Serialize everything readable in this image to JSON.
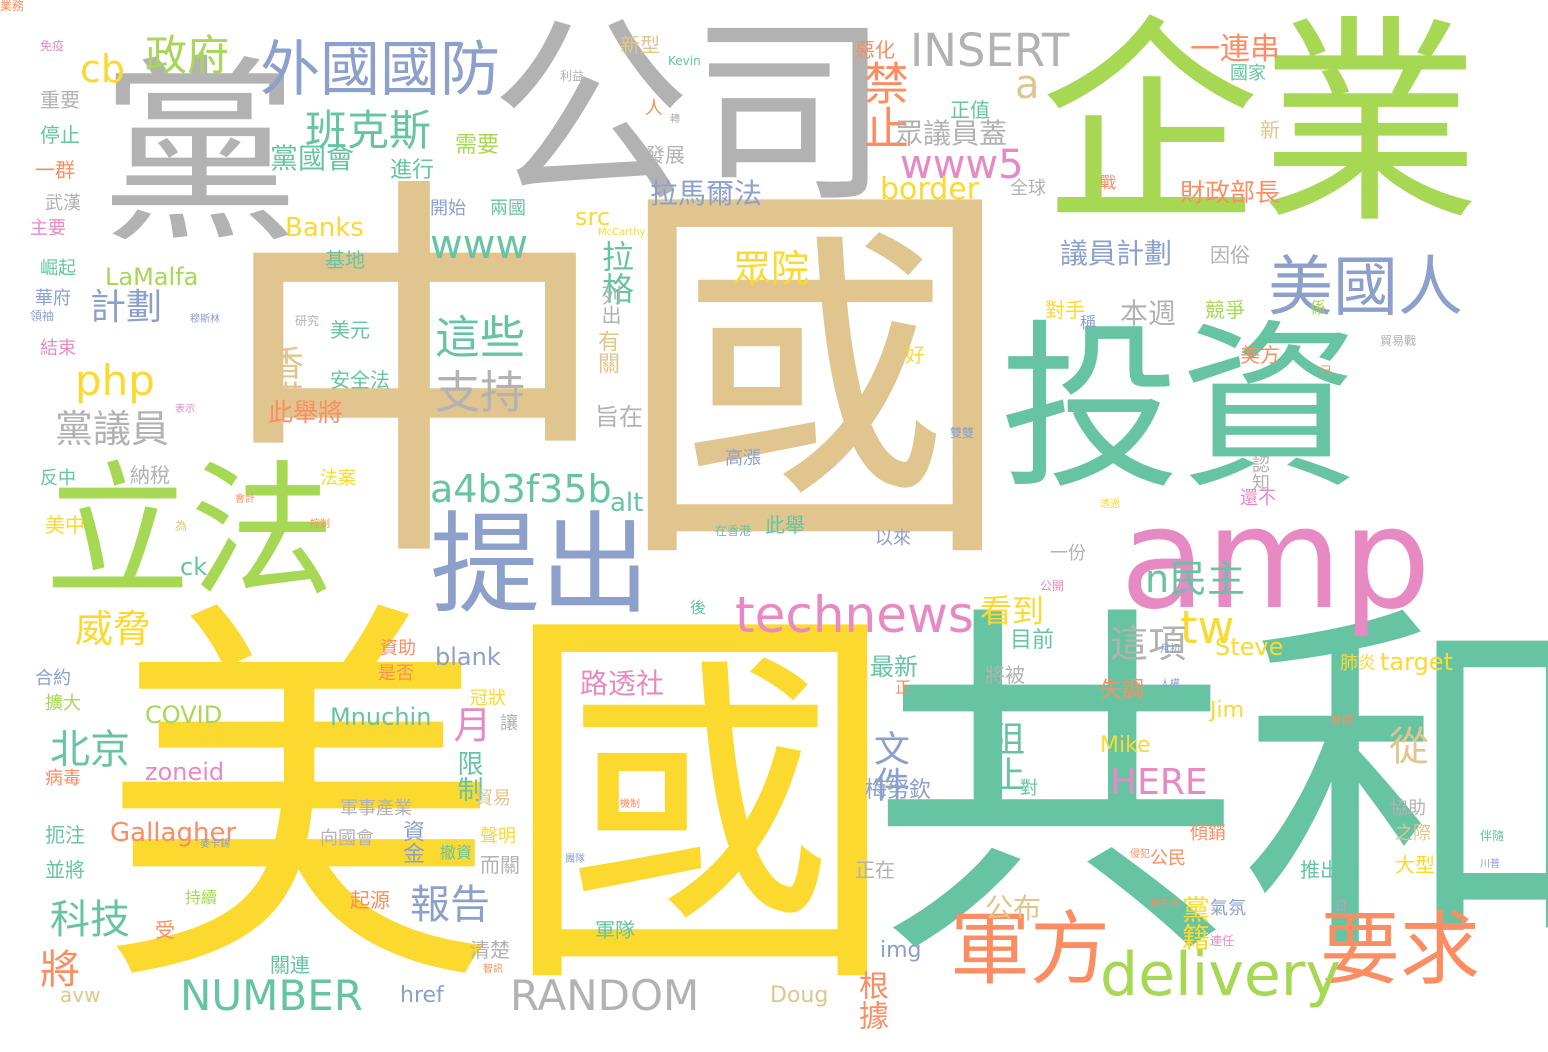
{
  "cloud": {
    "palette": {
      "tan": "#e1c58e",
      "yellow": "#fcd92f",
      "teal": "#66c4a3",
      "green": "#a6d854",
      "gray": "#b2b2b2",
      "blue": "#8da0cb",
      "pink": "#e78ac3",
      "orange": "#fc8d62"
    },
    "words": [
      {
        "t": "中國",
        "c": "tan"
      },
      {
        "t": "美國",
        "c": "yellow"
      },
      {
        "t": "共和",
        "c": "teal"
      },
      {
        "t": "企業",
        "c": "green"
      },
      {
        "t": "公司",
        "c": "gray"
      },
      {
        "t": "黨",
        "c": "gray"
      },
      {
        "t": "投資",
        "c": "teal"
      },
      {
        "t": "立法",
        "c": "green"
      },
      {
        "t": "amp",
        "c": "pink"
      },
      {
        "t": "提出",
        "c": "blue"
      },
      {
        "t": "軍方",
        "c": "orange"
      },
      {
        "t": "要求",
        "c": "orange"
      },
      {
        "t": "technews",
        "c": "pink"
      },
      {
        "t": "delivery",
        "c": "green"
      },
      {
        "t": "美國人",
        "c": "blue"
      },
      {
        "t": "外國國防",
        "c": "blue"
      },
      {
        "t": "INSERT",
        "c": "gray"
      },
      {
        "t": "www5",
        "c": "pink"
      },
      {
        "t": "www",
        "c": "teal"
      },
      {
        "t": "a4b3f35b",
        "c": "teal"
      },
      {
        "t": "NUMBER",
        "c": "teal"
      },
      {
        "t": "RANDOM",
        "c": "gray"
      },
      {
        "t": "php",
        "c": "yellow"
      },
      {
        "t": "班克斯",
        "c": "teal"
      },
      {
        "t": "政府",
        "c": "green"
      },
      {
        "t": "cb",
        "c": "yellow"
      },
      {
        "t": "禁止",
        "c": "orange"
      },
      {
        "t": "a",
        "c": "tan"
      },
      {
        "t": "香港",
        "c": "tan"
      },
      {
        "t": "此舉將",
        "c": "orange"
      },
      {
        "t": "這些",
        "c": "teal"
      },
      {
        "t": "支持",
        "c": "gray"
      },
      {
        "t": "眾院",
        "c": "yellow"
      },
      {
        "t": "拉格",
        "c": "teal"
      },
      {
        "t": "計劃",
        "c": "blue"
      },
      {
        "t": "黨議員",
        "c": "gray"
      },
      {
        "t": "威脅",
        "c": "yellow"
      },
      {
        "t": "北京",
        "c": "teal"
      },
      {
        "t": "科技",
        "c": "teal"
      },
      {
        "t": "將",
        "c": "orange"
      },
      {
        "t": "報告",
        "c": "blue"
      },
      {
        "t": "月",
        "c": "pink"
      },
      {
        "t": "tw",
        "c": "yellow"
      },
      {
        "t": "n民主",
        "c": "teal"
      },
      {
        "t": "這項",
        "c": "gray"
      },
      {
        "t": "看到",
        "c": "yellow"
      },
      {
        "t": "從",
        "c": "tan"
      },
      {
        "t": "HERE",
        "c": "pink"
      },
      {
        "t": "阻止",
        "c": "teal"
      },
      {
        "t": "文件",
        "c": "blue"
      },
      {
        "t": "路透社",
        "c": "pink"
      },
      {
        "t": "黨籍",
        "c": "yellow"
      },
      {
        "t": "公布",
        "c": "tan"
      },
      {
        "t": "根據",
        "c": "orange"
      },
      {
        "t": "黨國會",
        "c": "teal"
      },
      {
        "t": "border",
        "c": "yellow"
      },
      {
        "t": "拉馬爾法",
        "c": "blue"
      },
      {
        "t": "議員計劃",
        "c": "blue"
      },
      {
        "t": "眾議員蓋",
        "c": "gray"
      },
      {
        "t": "一連串",
        "c": "orange"
      },
      {
        "t": "財政部長",
        "c": "orange"
      },
      {
        "t": "本週",
        "c": "gray"
      },
      {
        "t": "Banks",
        "c": "yellow"
      },
      {
        "t": "LaMalfa",
        "c": "green"
      },
      {
        "t": "src",
        "c": "yellow"
      },
      {
        "t": "Gallagher",
        "c": "orange"
      },
      {
        "t": "zoneid",
        "c": "pink"
      },
      {
        "t": "COVID",
        "c": "green"
      },
      {
        "t": "Mnuchin",
        "c": "teal"
      },
      {
        "t": "blank",
        "c": "blue"
      },
      {
        "t": "Steve",
        "c": "yellow"
      },
      {
        "t": "target",
        "c": "yellow"
      },
      {
        "t": "Mike",
        "c": "yellow"
      },
      {
        "t": "Jim",
        "c": "yellow"
      },
      {
        "t": "href",
        "c": "blue"
      },
      {
        "t": "img",
        "c": "blue"
      },
      {
        "t": "Doug",
        "c": "tan"
      },
      {
        "t": "avw",
        "c": "tan"
      },
      {
        "t": "ck",
        "c": "teal"
      },
      {
        "t": "alt",
        "c": "teal"
      },
      {
        "t": "限制",
        "c": "teal"
      },
      {
        "t": "資金",
        "c": "blue"
      },
      {
        "t": "有關",
        "c": "tan"
      },
      {
        "t": "旨在",
        "c": "gray"
      },
      {
        "t": "列出",
        "c": "gray"
      },
      {
        "t": "最新",
        "c": "teal"
      },
      {
        "t": "梅努欽",
        "c": "blue"
      },
      {
        "t": "目前",
        "c": "teal"
      },
      {
        "t": "失調",
        "c": "orange"
      },
      {
        "t": "將被",
        "c": "gray"
      },
      {
        "t": "進行",
        "c": "teal"
      },
      {
        "t": "需要",
        "c": "green"
      },
      {
        "t": "開始",
        "c": "blue"
      },
      {
        "t": "兩國",
        "c": "teal"
      },
      {
        "t": "基地",
        "c": "teal"
      },
      {
        "t": "發展",
        "c": "gray"
      },
      {
        "t": "全球",
        "c": "gray"
      },
      {
        "t": "因俗",
        "c": "gray"
      },
      {
        "t": "競爭",
        "c": "green"
      },
      {
        "t": "對手",
        "c": "yellow"
      },
      {
        "t": "美方",
        "c": "orange"
      },
      {
        "t": "認知",
        "c": "gray"
      },
      {
        "t": "還不",
        "c": "pink"
      },
      {
        "t": "好",
        "c": "yellow"
      },
      {
        "t": "以來",
        "c": "blue"
      },
      {
        "t": "高漲",
        "c": "blue"
      },
      {
        "t": "此舉",
        "c": "teal"
      },
      {
        "t": "一份",
        "c": "gray"
      },
      {
        "t": "美元",
        "c": "teal"
      },
      {
        "t": "安全法",
        "c": "teal"
      },
      {
        "t": "法案",
        "c": "yellow"
      },
      {
        "t": "納稅",
        "c": "gray"
      },
      {
        "t": "反中",
        "c": "teal"
      },
      {
        "t": "美中",
        "c": "yellow"
      },
      {
        "t": "結束",
        "c": "pink"
      },
      {
        "t": "華府",
        "c": "blue"
      },
      {
        "t": "崛起",
        "c": "teal"
      },
      {
        "t": "主要",
        "c": "pink"
      },
      {
        "t": "武漢",
        "c": "gray"
      },
      {
        "t": "一群",
        "c": "orange"
      },
      {
        "t": "停止",
        "c": "teal"
      },
      {
        "t": "重要",
        "c": "gray"
      },
      {
        "t": "新型",
        "c": "tan"
      },
      {
        "t": "人",
        "c": "orange"
      },
      {
        "t": "惡化",
        "c": "orange"
      },
      {
        "t": "正值",
        "c": "teal"
      },
      {
        "t": "國家",
        "c": "teal"
      },
      {
        "t": "新",
        "c": "tan"
      },
      {
        "t": "係",
        "c": "green"
      },
      {
        "t": "稱",
        "c": "blue"
      },
      {
        "t": "軍事產業",
        "c": "gray"
      },
      {
        "t": "向國會",
        "c": "gray"
      },
      {
        "t": "而關",
        "c": "gray"
      },
      {
        "t": "聲明",
        "c": "yellow"
      },
      {
        "t": "貿易",
        "c": "tan"
      },
      {
        "t": "冠狀",
        "c": "yellow"
      },
      {
        "t": "讓",
        "c": "gray"
      },
      {
        "t": "撤資",
        "c": "teal"
      },
      {
        "t": "資助",
        "c": "orange"
      },
      {
        "t": "是否",
        "c": "orange"
      },
      {
        "t": "合約",
        "c": "blue"
      },
      {
        "t": "擴大",
        "c": "green"
      },
      {
        "t": "病毒",
        "c": "orange"
      },
      {
        "t": "扼注",
        "c": "teal"
      },
      {
        "t": "並將",
        "c": "teal"
      },
      {
        "t": "受",
        "c": "orange"
      },
      {
        "t": "持續",
        "c": "green"
      },
      {
        "t": "起源",
        "c": "orange"
      },
      {
        "t": "關連",
        "c": "teal"
      },
      {
        "t": "清楚",
        "c": "gray"
      },
      {
        "t": "軍隊",
        "c": "teal"
      },
      {
        "t": "正在",
        "c": "gray"
      },
      {
        "t": "公民",
        "c": "orange"
      },
      {
        "t": "傾銷",
        "c": "orange"
      },
      {
        "t": "國會",
        "c": "teal"
      },
      {
        "t": "推出",
        "c": "teal"
      },
      {
        "t": "氣氛",
        "c": "blue"
      },
      {
        "t": "協助",
        "c": "gray"
      },
      {
        "t": "之際",
        "c": "tan"
      },
      {
        "t": "大型",
        "c": "yellow"
      },
      {
        "t": "肺炎",
        "c": "yellow"
      },
      {
        "t": "對",
        "c": "teal"
      },
      {
        "t": "後",
        "c": "teal"
      },
      {
        "t": "正",
        "c": "orange"
      },
      {
        "t": "戰",
        "c": "orange"
      },
      {
        "t": "Kevin",
        "c": "teal"
      },
      {
        "t": "McCarthy",
        "c": "yellow"
      },
      {
        "t": "利益",
        "c": "gray"
      },
      {
        "t": "貿易戰",
        "c": "gray"
      },
      {
        "t": "領袖",
        "c": "blue"
      },
      {
        "t": "穆斯林",
        "c": "blue"
      },
      {
        "t": "研究",
        "c": "gray"
      },
      {
        "t": "表示",
        "c": "pink"
      },
      {
        "t": "會計",
        "c": "orange"
      },
      {
        "t": "為",
        "c": "tan"
      },
      {
        "t": "控制",
        "c": "orange"
      },
      {
        "t": "在香港",
        "c": "teal"
      },
      {
        "t": "雙雙",
        "c": "blue"
      },
      {
        "t": "透過",
        "c": "yellow"
      },
      {
        "t": "公開",
        "c": "pink"
      },
      {
        "t": "機制",
        "c": "orange"
      },
      {
        "t": "團隊",
        "c": "blue"
      },
      {
        "t": "麥卡錫",
        "c": "blue"
      },
      {
        "t": "智訊",
        "c": "orange"
      },
      {
        "t": "月初",
        "c": "blue"
      },
      {
        "t": "人權",
        "c": "blue"
      },
      {
        "t": "參院",
        "c": "orange"
      },
      {
        "t": "伴隨",
        "c": "teal"
      },
      {
        "t": "日",
        "c": "pink"
      },
      {
        "t": "侵犯",
        "c": "orange"
      },
      {
        "t": "黨主導",
        "c": "orange"
      },
      {
        "t": "連任",
        "c": "pink"
      },
      {
        "t": "已",
        "c": "orange"
      },
      {
        "t": "川普",
        "c": "blue"
      },
      {
        "t": "轉",
        "c": "gray"
      },
      {
        "t": "免疫",
        "c": "pink"
      },
      {
        "t": "業務",
        "c": "orange"
      }
    ]
  }
}
